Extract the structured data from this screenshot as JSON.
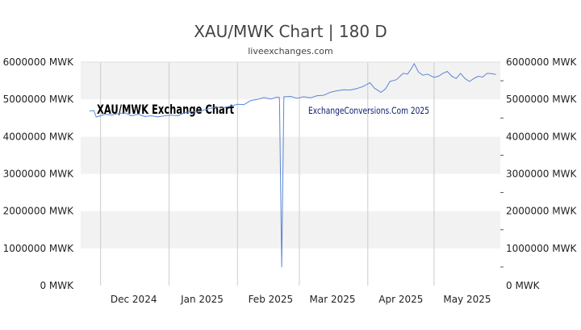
{
  "chart_data": {
    "type": "line",
    "title": "XAU/MWK Chart | 180 D",
    "subtitle": "liveexchanges.com",
    "xlabel": "",
    "ylabel": "",
    "ylim": [
      0,
      6000000
    ],
    "y_ticks": [
      {
        "value": 0,
        "label": "0 MWK"
      },
      {
        "value": 1000000,
        "label": "1000000 MWK"
      },
      {
        "value": 2000000,
        "label": "2000000 MWK"
      },
      {
        "value": 3000000,
        "label": "3000000 MWK"
      },
      {
        "value": 4000000,
        "label": "4000000 MWK"
      },
      {
        "value": 5000000,
        "label": "5000000 MWK"
      },
      {
        "value": 6000000,
        "label": "6000000 MWK"
      }
    ],
    "xlim": [
      "2024-11-22",
      "2025-05-31"
    ],
    "x_ticks": [
      {
        "date": "2024-12-01",
        "label": "Dec 2024"
      },
      {
        "date": "2025-01-01",
        "label": "Jan 2025"
      },
      {
        "date": "2025-02-01",
        "label": "Feb 2025"
      },
      {
        "date": "2025-03-01",
        "label": "Mar 2025"
      },
      {
        "date": "2025-04-01",
        "label": "Apr 2025"
      },
      {
        "date": "2025-05-01",
        "label": "May 2025"
      }
    ],
    "grid": true,
    "line_color": "#5a86d6",
    "band_color": "#f2f2f2",
    "watermarks": {
      "left": "XAU/MWK Exchange Chart",
      "right": "ExchangeConversions.Com 2025"
    },
    "series": [
      {
        "points": [
          [
            "2024-11-26",
            4690000
          ],
          [
            "2024-11-28",
            4700000
          ],
          [
            "2024-11-29",
            4530000
          ],
          [
            "2024-12-01",
            4560000
          ],
          [
            "2024-12-03",
            4600000
          ],
          [
            "2024-12-06",
            4580000
          ],
          [
            "2024-12-09",
            4620000
          ],
          [
            "2024-12-12",
            4640000
          ],
          [
            "2024-12-15",
            4560000
          ],
          [
            "2024-12-18",
            4600000
          ],
          [
            "2024-12-21",
            4540000
          ],
          [
            "2024-12-24",
            4560000
          ],
          [
            "2024-12-27",
            4530000
          ],
          [
            "2024-12-30",
            4560000
          ],
          [
            "2025-01-02",
            4580000
          ],
          [
            "2025-01-05",
            4560000
          ],
          [
            "2025-01-08",
            4640000
          ],
          [
            "2025-01-11",
            4670000
          ],
          [
            "2025-01-14",
            4660000
          ],
          [
            "2025-01-17",
            4720000
          ],
          [
            "2025-01-20",
            4760000
          ],
          [
            "2025-01-23",
            4790000
          ],
          [
            "2025-01-26",
            4780000
          ],
          [
            "2025-01-29",
            4820000
          ],
          [
            "2025-02-01",
            4870000
          ],
          [
            "2025-02-04",
            4860000
          ],
          [
            "2025-02-07",
            4970000
          ],
          [
            "2025-02-10",
            5000000
          ],
          [
            "2025-02-13",
            5050000
          ],
          [
            "2025-02-16",
            5010000
          ],
          [
            "2025-02-19",
            5060000
          ],
          [
            "2025-02-20",
            5050000
          ],
          [
            "2025-02-21",
            500000
          ],
          [
            "2025-02-22",
            5070000
          ],
          [
            "2025-02-25",
            5080000
          ],
          [
            "2025-02-28",
            5030000
          ],
          [
            "2025-03-03",
            5070000
          ],
          [
            "2025-03-06",
            5040000
          ],
          [
            "2025-03-09",
            5100000
          ],
          [
            "2025-03-12",
            5110000
          ],
          [
            "2025-03-15",
            5190000
          ],
          [
            "2025-03-18",
            5230000
          ],
          [
            "2025-03-21",
            5260000
          ],
          [
            "2025-03-24",
            5250000
          ],
          [
            "2025-03-27",
            5290000
          ],
          [
            "2025-03-30",
            5350000
          ],
          [
            "2025-04-02",
            5450000
          ],
          [
            "2025-04-04",
            5300000
          ],
          [
            "2025-04-07",
            5190000
          ],
          [
            "2025-04-09",
            5280000
          ],
          [
            "2025-04-11",
            5480000
          ],
          [
            "2025-04-14",
            5530000
          ],
          [
            "2025-04-17",
            5700000
          ],
          [
            "2025-04-19",
            5680000
          ],
          [
            "2025-04-21",
            5850000
          ],
          [
            "2025-04-22",
            5960000
          ],
          [
            "2025-04-24",
            5730000
          ],
          [
            "2025-04-26",
            5650000
          ],
          [
            "2025-04-28",
            5680000
          ],
          [
            "2025-05-01",
            5590000
          ],
          [
            "2025-05-03",
            5620000
          ],
          [
            "2025-05-05",
            5700000
          ],
          [
            "2025-05-07",
            5750000
          ],
          [
            "2025-05-09",
            5620000
          ],
          [
            "2025-05-11",
            5560000
          ],
          [
            "2025-05-13",
            5700000
          ],
          [
            "2025-05-15",
            5560000
          ],
          [
            "2025-05-17",
            5480000
          ],
          [
            "2025-05-19",
            5560000
          ],
          [
            "2025-05-21",
            5620000
          ],
          [
            "2025-05-23",
            5600000
          ],
          [
            "2025-05-25",
            5700000
          ],
          [
            "2025-05-27",
            5690000
          ],
          [
            "2025-05-29",
            5670000
          ]
        ]
      }
    ]
  }
}
